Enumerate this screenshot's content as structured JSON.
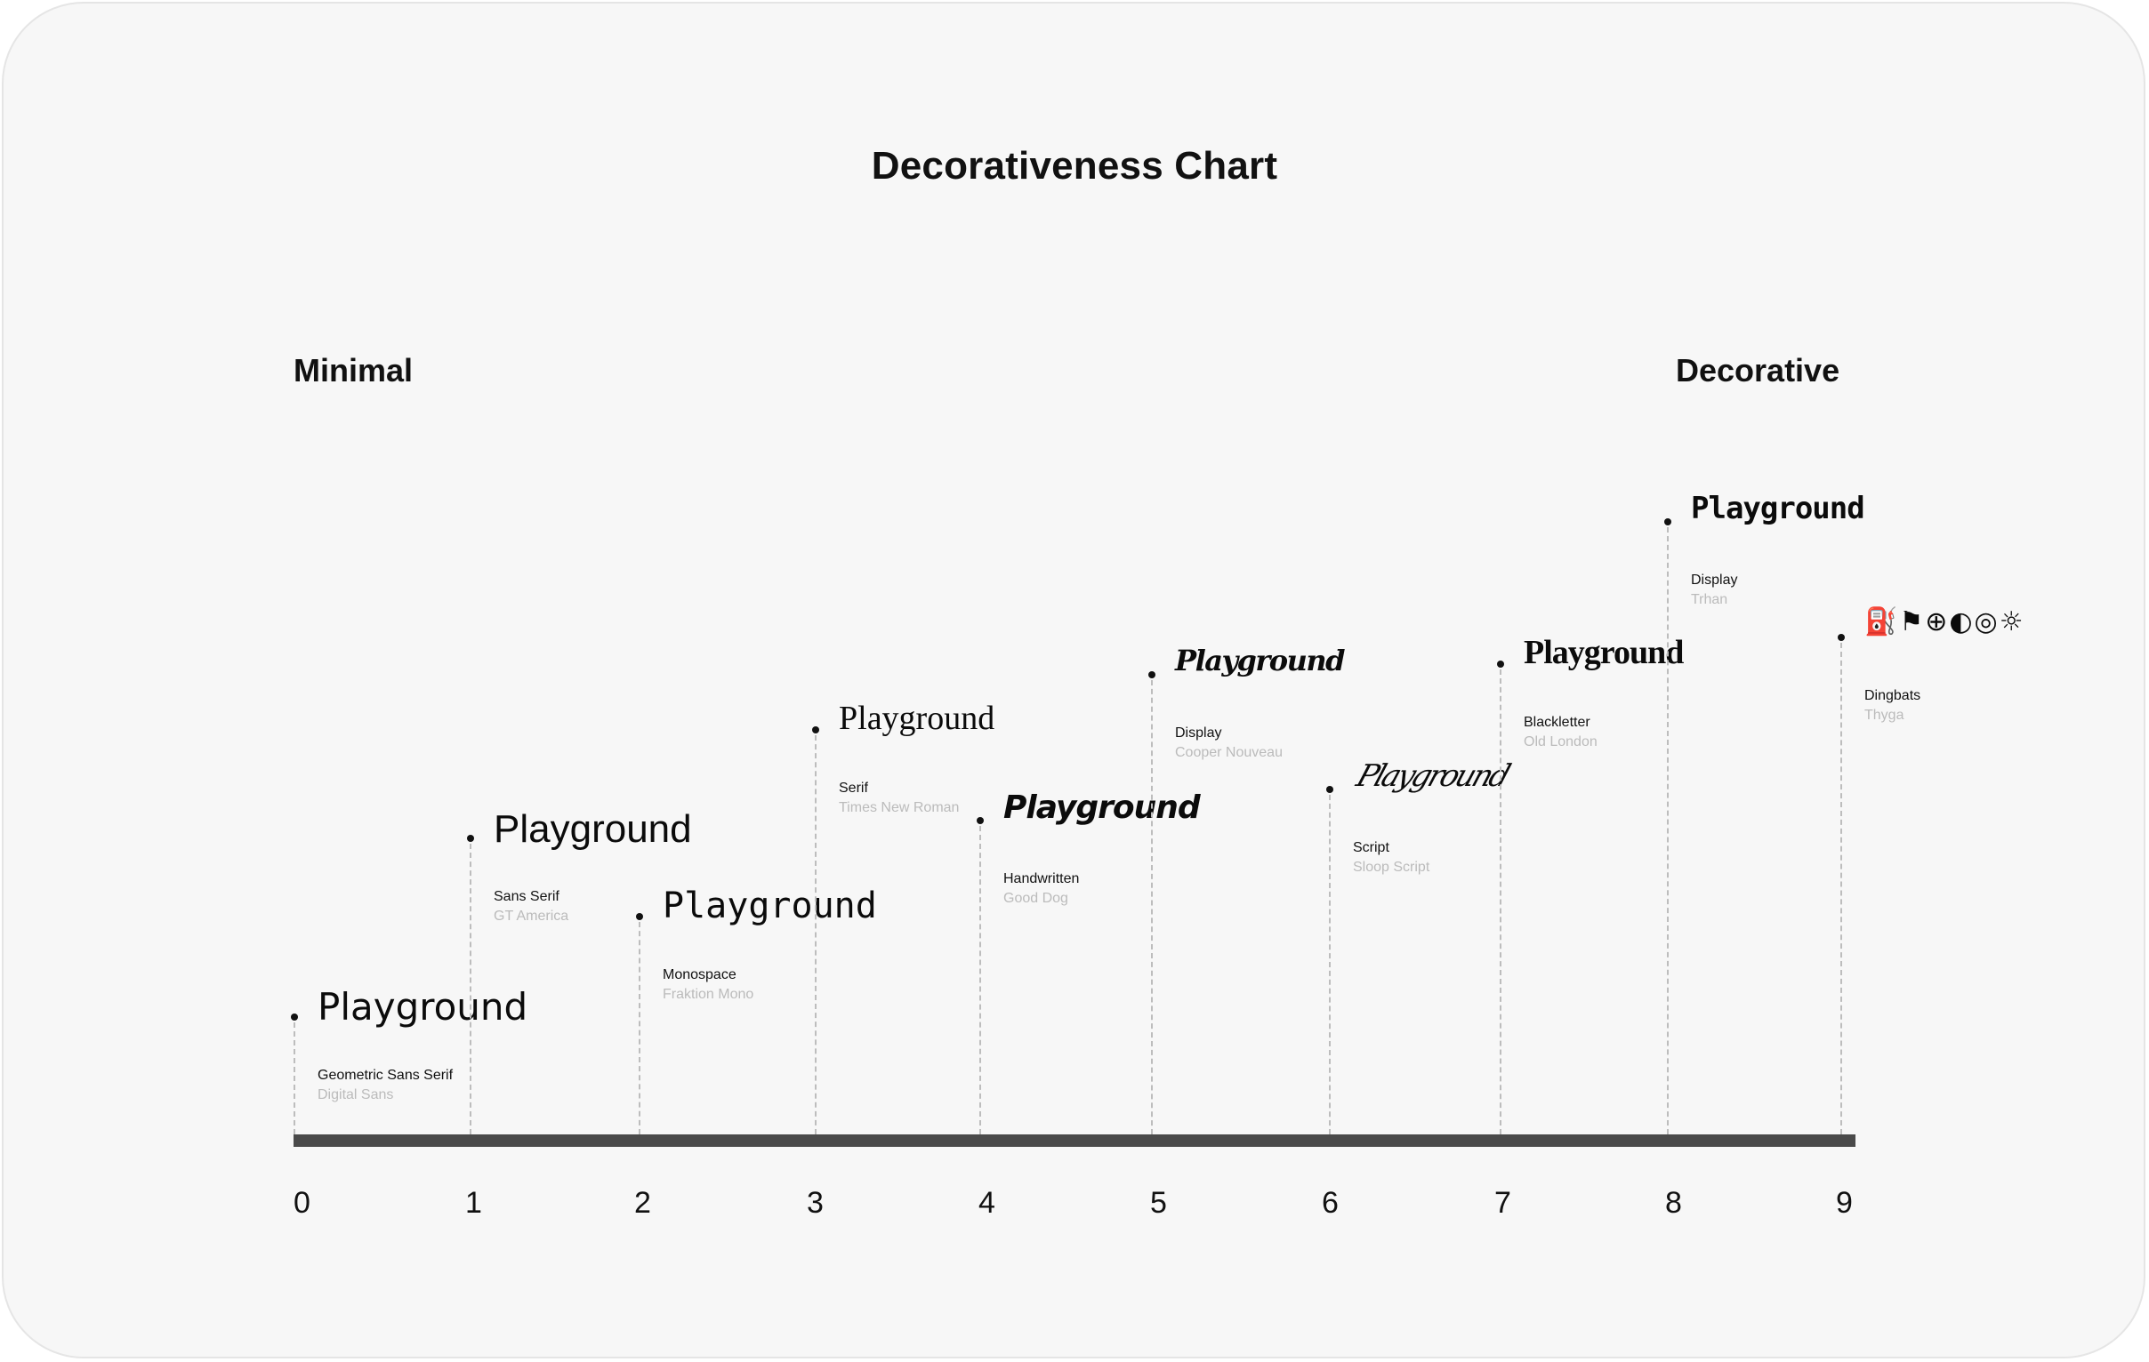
{
  "chart_data": {
    "type": "scatter",
    "title": "Decorativeness Chart",
    "min_label": "Minimal",
    "max_label": "Decorative",
    "xlim": [
      0,
      9
    ],
    "ticks": [
      "0",
      "1",
      "2",
      "3",
      "4",
      "5",
      "6",
      "7",
      "8",
      "9"
    ],
    "points": [
      {
        "x": 0,
        "sample": "Playground",
        "category": "Geometric Sans Serif",
        "font": "Digital Sans"
      },
      {
        "x": 1,
        "sample": "Playground",
        "category": "Sans Serif",
        "font": "GT America"
      },
      {
        "x": 2,
        "sample": "Playground",
        "category": "Monospace",
        "font": "Fraktion Mono"
      },
      {
        "x": 3,
        "sample": "Playground",
        "category": "Serif",
        "font": "Times New Roman"
      },
      {
        "x": 4,
        "sample": "Playground",
        "category": "Handwritten",
        "font": "Good Dog"
      },
      {
        "x": 5,
        "sample": "Playground",
        "category": "Display",
        "font": "Cooper Nouveau"
      },
      {
        "x": 6,
        "sample": "Playground",
        "category": "Script",
        "font": "Sloop Script"
      },
      {
        "x": 7,
        "sample": "Playground",
        "category": "Blackletter",
        "font": "Old London"
      },
      {
        "x": 8,
        "sample": "Playground",
        "category": "Display",
        "font": "Trhan"
      },
      {
        "x": 9,
        "sample": "⛽⚑⊕◐◎☼",
        "category": "Dingbats",
        "font": "Thyga"
      }
    ]
  }
}
